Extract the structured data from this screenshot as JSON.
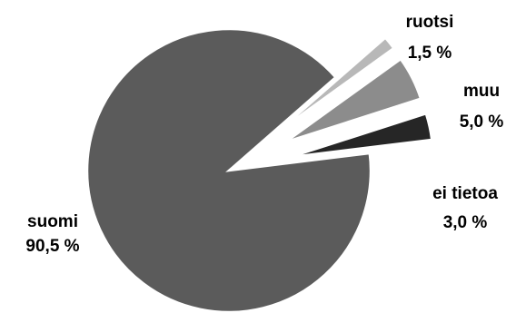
{
  "chart_data": {
    "type": "pie",
    "title": "",
    "slices": [
      {
        "label": "suomi",
        "value": 90.5,
        "value_label": "90,5 %",
        "color": "#5b5b5b",
        "exploded": false
      },
      {
        "label": "ruotsi",
        "value": 1.5,
        "value_label": "1,5 %",
        "color": "#b8b8b8",
        "exploded": true
      },
      {
        "label": "muu",
        "value": 5.0,
        "value_label": "5,0 %",
        "color": "#8c8c8c",
        "exploded": true
      },
      {
        "label": "ei tietoa",
        "value": 3.0,
        "value_label": "3,0 %",
        "color": "#262626",
        "exploded": true
      }
    ],
    "legend": "none",
    "data_labels": "outside"
  }
}
